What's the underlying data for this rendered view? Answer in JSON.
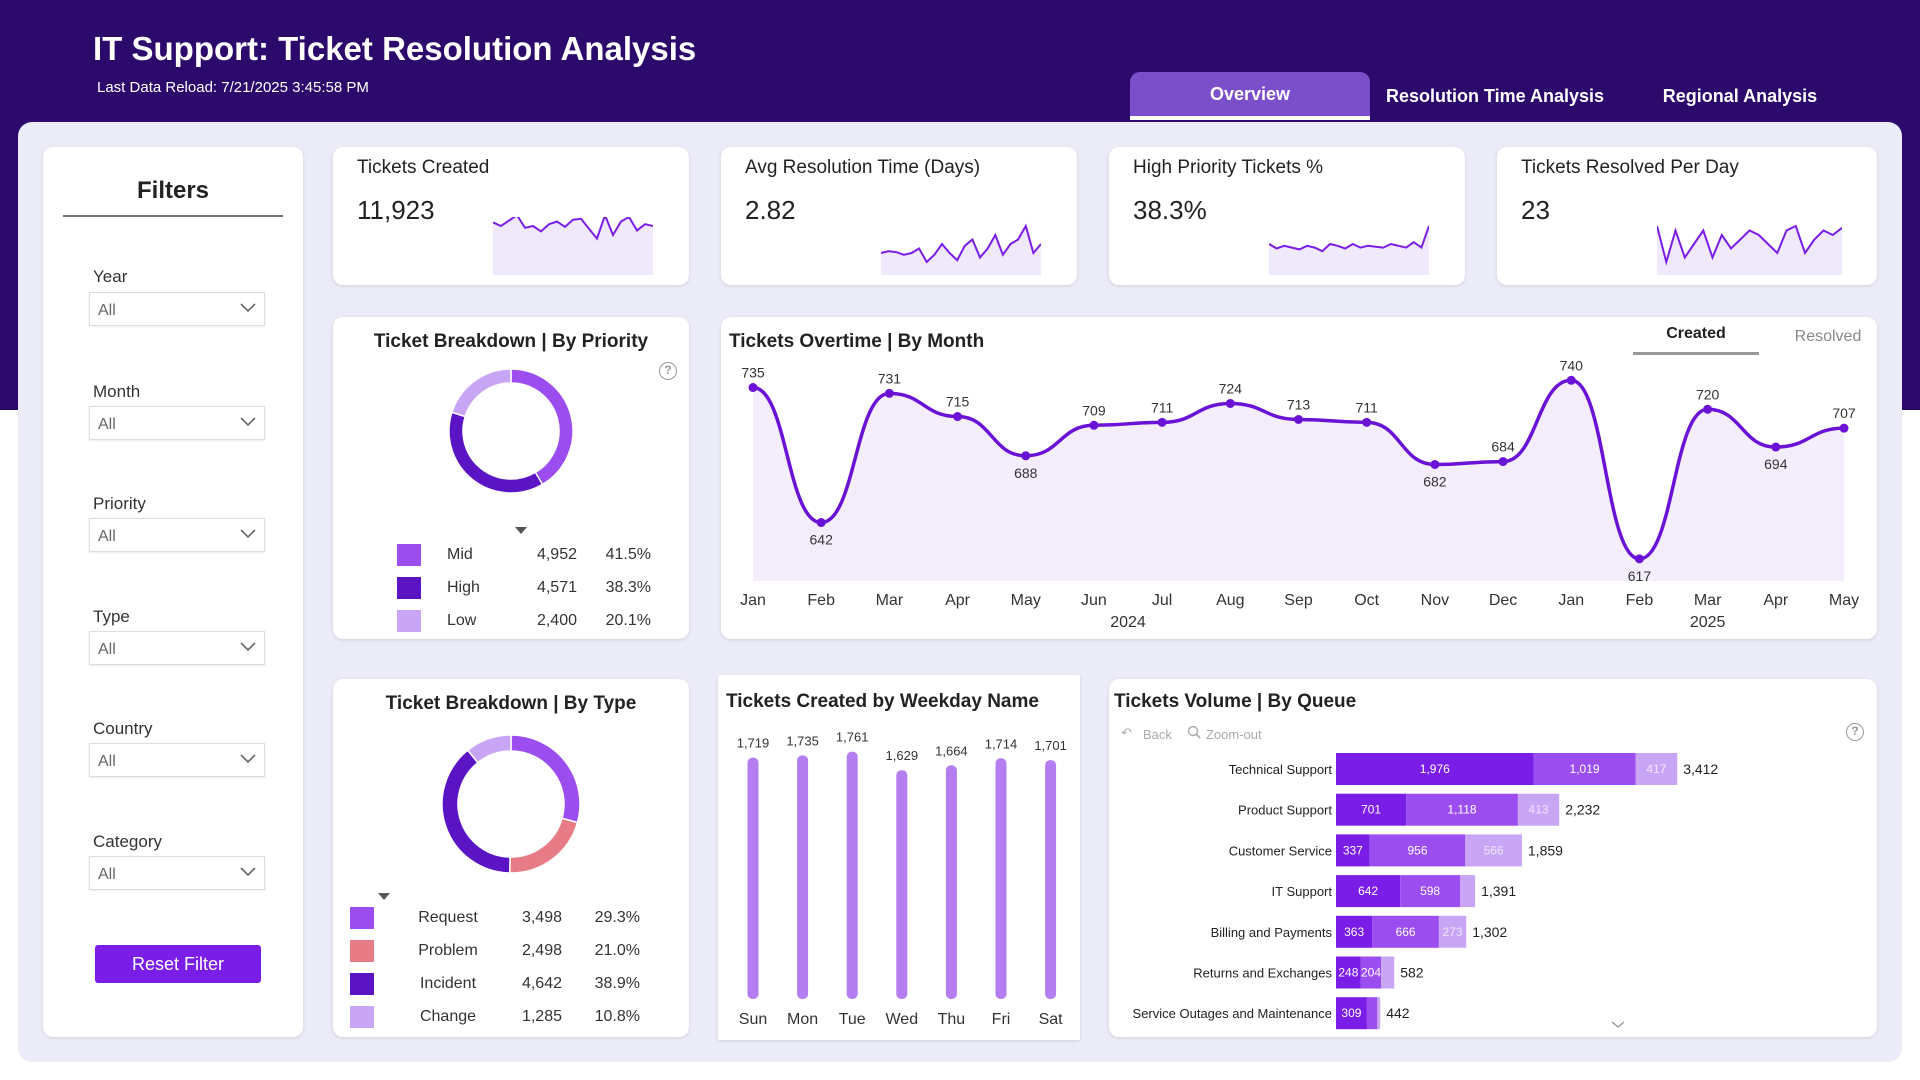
{
  "header": {
    "title": "IT Support: Ticket Resolution Analysis",
    "last_reload": "Last Data Reload: 7/21/2025 3:45:58 PM"
  },
  "tabs": [
    {
      "label": "Overview",
      "active": true
    },
    {
      "label": "Resolution Time Analysis",
      "active": false
    },
    {
      "label": "Regional Analysis",
      "active": false
    }
  ],
  "filters": {
    "title": "Filters",
    "items": [
      {
        "label": "Year",
        "value": "All"
      },
      {
        "label": "Month",
        "value": "All"
      },
      {
        "label": "Priority",
        "value": "All"
      },
      {
        "label": "Type",
        "value": "All"
      },
      {
        "label": "Country",
        "value": "All"
      },
      {
        "label": "Category",
        "value": "All"
      }
    ],
    "reset_label": "Reset Filter"
  },
  "kpis": [
    {
      "title": "Tickets Created",
      "value": "11,923"
    },
    {
      "title": "Avg Resolution Time (Days)",
      "value": "2.82"
    },
    {
      "title": "High Priority Tickets %",
      "value": "38.3%"
    },
    {
      "title": "Tickets Resolved Per Day",
      "value": "23"
    }
  ],
  "overtime": {
    "toggle_created": "Created",
    "toggle_resolved": "Resolved"
  },
  "queue_controls": {
    "back": "Back",
    "zoom_out": "Zoom-out"
  },
  "colors": {
    "banner": "#2c0a6b",
    "accent": "#7a1de6",
    "dark_purple": "#5b14c4",
    "mid_purple": "#9b4df0",
    "light_purple": "#c9a6f5",
    "problem": "#e87c86",
    "bar": "#b57ef0"
  },
  "chart_data": [
    {
      "id": "priority",
      "type": "pie",
      "title": "Ticket Breakdown | By Priority",
      "labels": [
        "Mid",
        "High",
        "Low"
      ],
      "values": [
        4952,
        4571,
        2400
      ],
      "value_labels": [
        "4,952",
        "4,571",
        "2,400"
      ],
      "percents": [
        "41.5%",
        "38.3%",
        "20.1%"
      ],
      "colors": [
        "#9b4df0",
        "#5b14c4",
        "#c9a6f5"
      ]
    },
    {
      "id": "type",
      "type": "pie",
      "title": "Ticket Breakdown | By Type",
      "labels": [
        "Request",
        "Problem",
        "Incident",
        "Change"
      ],
      "values": [
        3498,
        2498,
        4642,
        1285
      ],
      "value_labels": [
        "3,498",
        "2,498",
        "4,642",
        "1,285"
      ],
      "percents": [
        "29.3%",
        "21.0%",
        "38.9%",
        "10.8%"
      ],
      "colors": [
        "#9b4df0",
        "#e87c86",
        "#5b14c4",
        "#c9a6f5"
      ]
    },
    {
      "id": "overtime",
      "type": "line",
      "title": "Tickets Overtime | By Month",
      "categories": [
        "Jan",
        "Feb",
        "Mar",
        "Apr",
        "May",
        "Jun",
        "Jul",
        "Aug",
        "Sep",
        "Oct",
        "Nov",
        "Dec",
        "Jan",
        "Feb",
        "Mar",
        "Apr",
        "May"
      ],
      "values": [
        735,
        642,
        731,
        715,
        688,
        709,
        711,
        724,
        713,
        711,
        682,
        684,
        740,
        617,
        720,
        694,
        707
      ],
      "years": [
        {
          "label": "2024",
          "index": 5.5
        },
        {
          "label": "2025",
          "index": 14
        }
      ],
      "ylim": [
        610,
        745
      ]
    },
    {
      "id": "weekday",
      "type": "bar",
      "title": "Tickets Created by Weekday Name",
      "categories": [
        "Sun",
        "Mon",
        "Tue",
        "Wed",
        "Thu",
        "Fri",
        "Sat"
      ],
      "values": [
        1719,
        1735,
        1761,
        1629,
        1664,
        1714,
        1701
      ],
      "value_labels": [
        "1,719",
        "1,735",
        "1,761",
        "1,629",
        "1,664",
        "1,714",
        "1,701"
      ],
      "ylim": [
        0,
        1780
      ]
    },
    {
      "id": "queue",
      "type": "bar",
      "stacked": true,
      "orientation": "horizontal",
      "title": "Tickets Volume | By Queue",
      "categories": [
        "Technical Support",
        "Product Support",
        "Customer Service",
        "IT Support",
        "Billing and Payments",
        "Returns and Exchanges",
        "Service Outages and Maintenance"
      ],
      "series": [
        {
          "name": "High",
          "values": [
            1976,
            701,
            337,
            642,
            363,
            248,
            309
          ],
          "color": "#7a1de6"
        },
        {
          "name": "Mid",
          "values": [
            1019,
            1118,
            956,
            598,
            666,
            204,
            104
          ],
          "color": "#9b4df0"
        },
        {
          "name": "Low",
          "values": [
            417,
            413,
            566,
            151,
            273,
            130,
            29
          ],
          "color": "#c9a6f5"
        }
      ],
      "segment_labels": [
        [
          "1,976",
          "1,019",
          "417"
        ],
        [
          "701",
          "1,118",
          "413"
        ],
        [
          "337",
          "956",
          "566"
        ],
        [
          "642",
          "598",
          ""
        ],
        [
          "363",
          "666",
          "273"
        ],
        [
          "248",
          "204",
          ""
        ],
        [
          "309",
          "",
          ""
        ]
      ],
      "totals": [
        "3,412",
        "2,232",
        "1,859",
        "1,391",
        "1,302",
        "582",
        "442"
      ]
    }
  ],
  "sparklines": [
    [
      54,
      50,
      56,
      62,
      48,
      50,
      44,
      52,
      55,
      49,
      57,
      58,
      47,
      36,
      62,
      40,
      55,
      60,
      45,
      52,
      50
    ],
    [
      20,
      22,
      21,
      18,
      20,
      25,
      10,
      18,
      30,
      20,
      12,
      28,
      35,
      15,
      25,
      40,
      18,
      30,
      35,
      50,
      20,
      30
    ],
    [
      30,
      25,
      28,
      26,
      24,
      28,
      26,
      22,
      30,
      28,
      25,
      30,
      26,
      28,
      27,
      26,
      30,
      28,
      26,
      32,
      26,
      50
    ],
    [
      50,
      10,
      45,
      15,
      30,
      45,
      15,
      40,
      25,
      35,
      45,
      40,
      30,
      20,
      45,
      50,
      20,
      35,
      45,
      40,
      48
    ]
  ]
}
